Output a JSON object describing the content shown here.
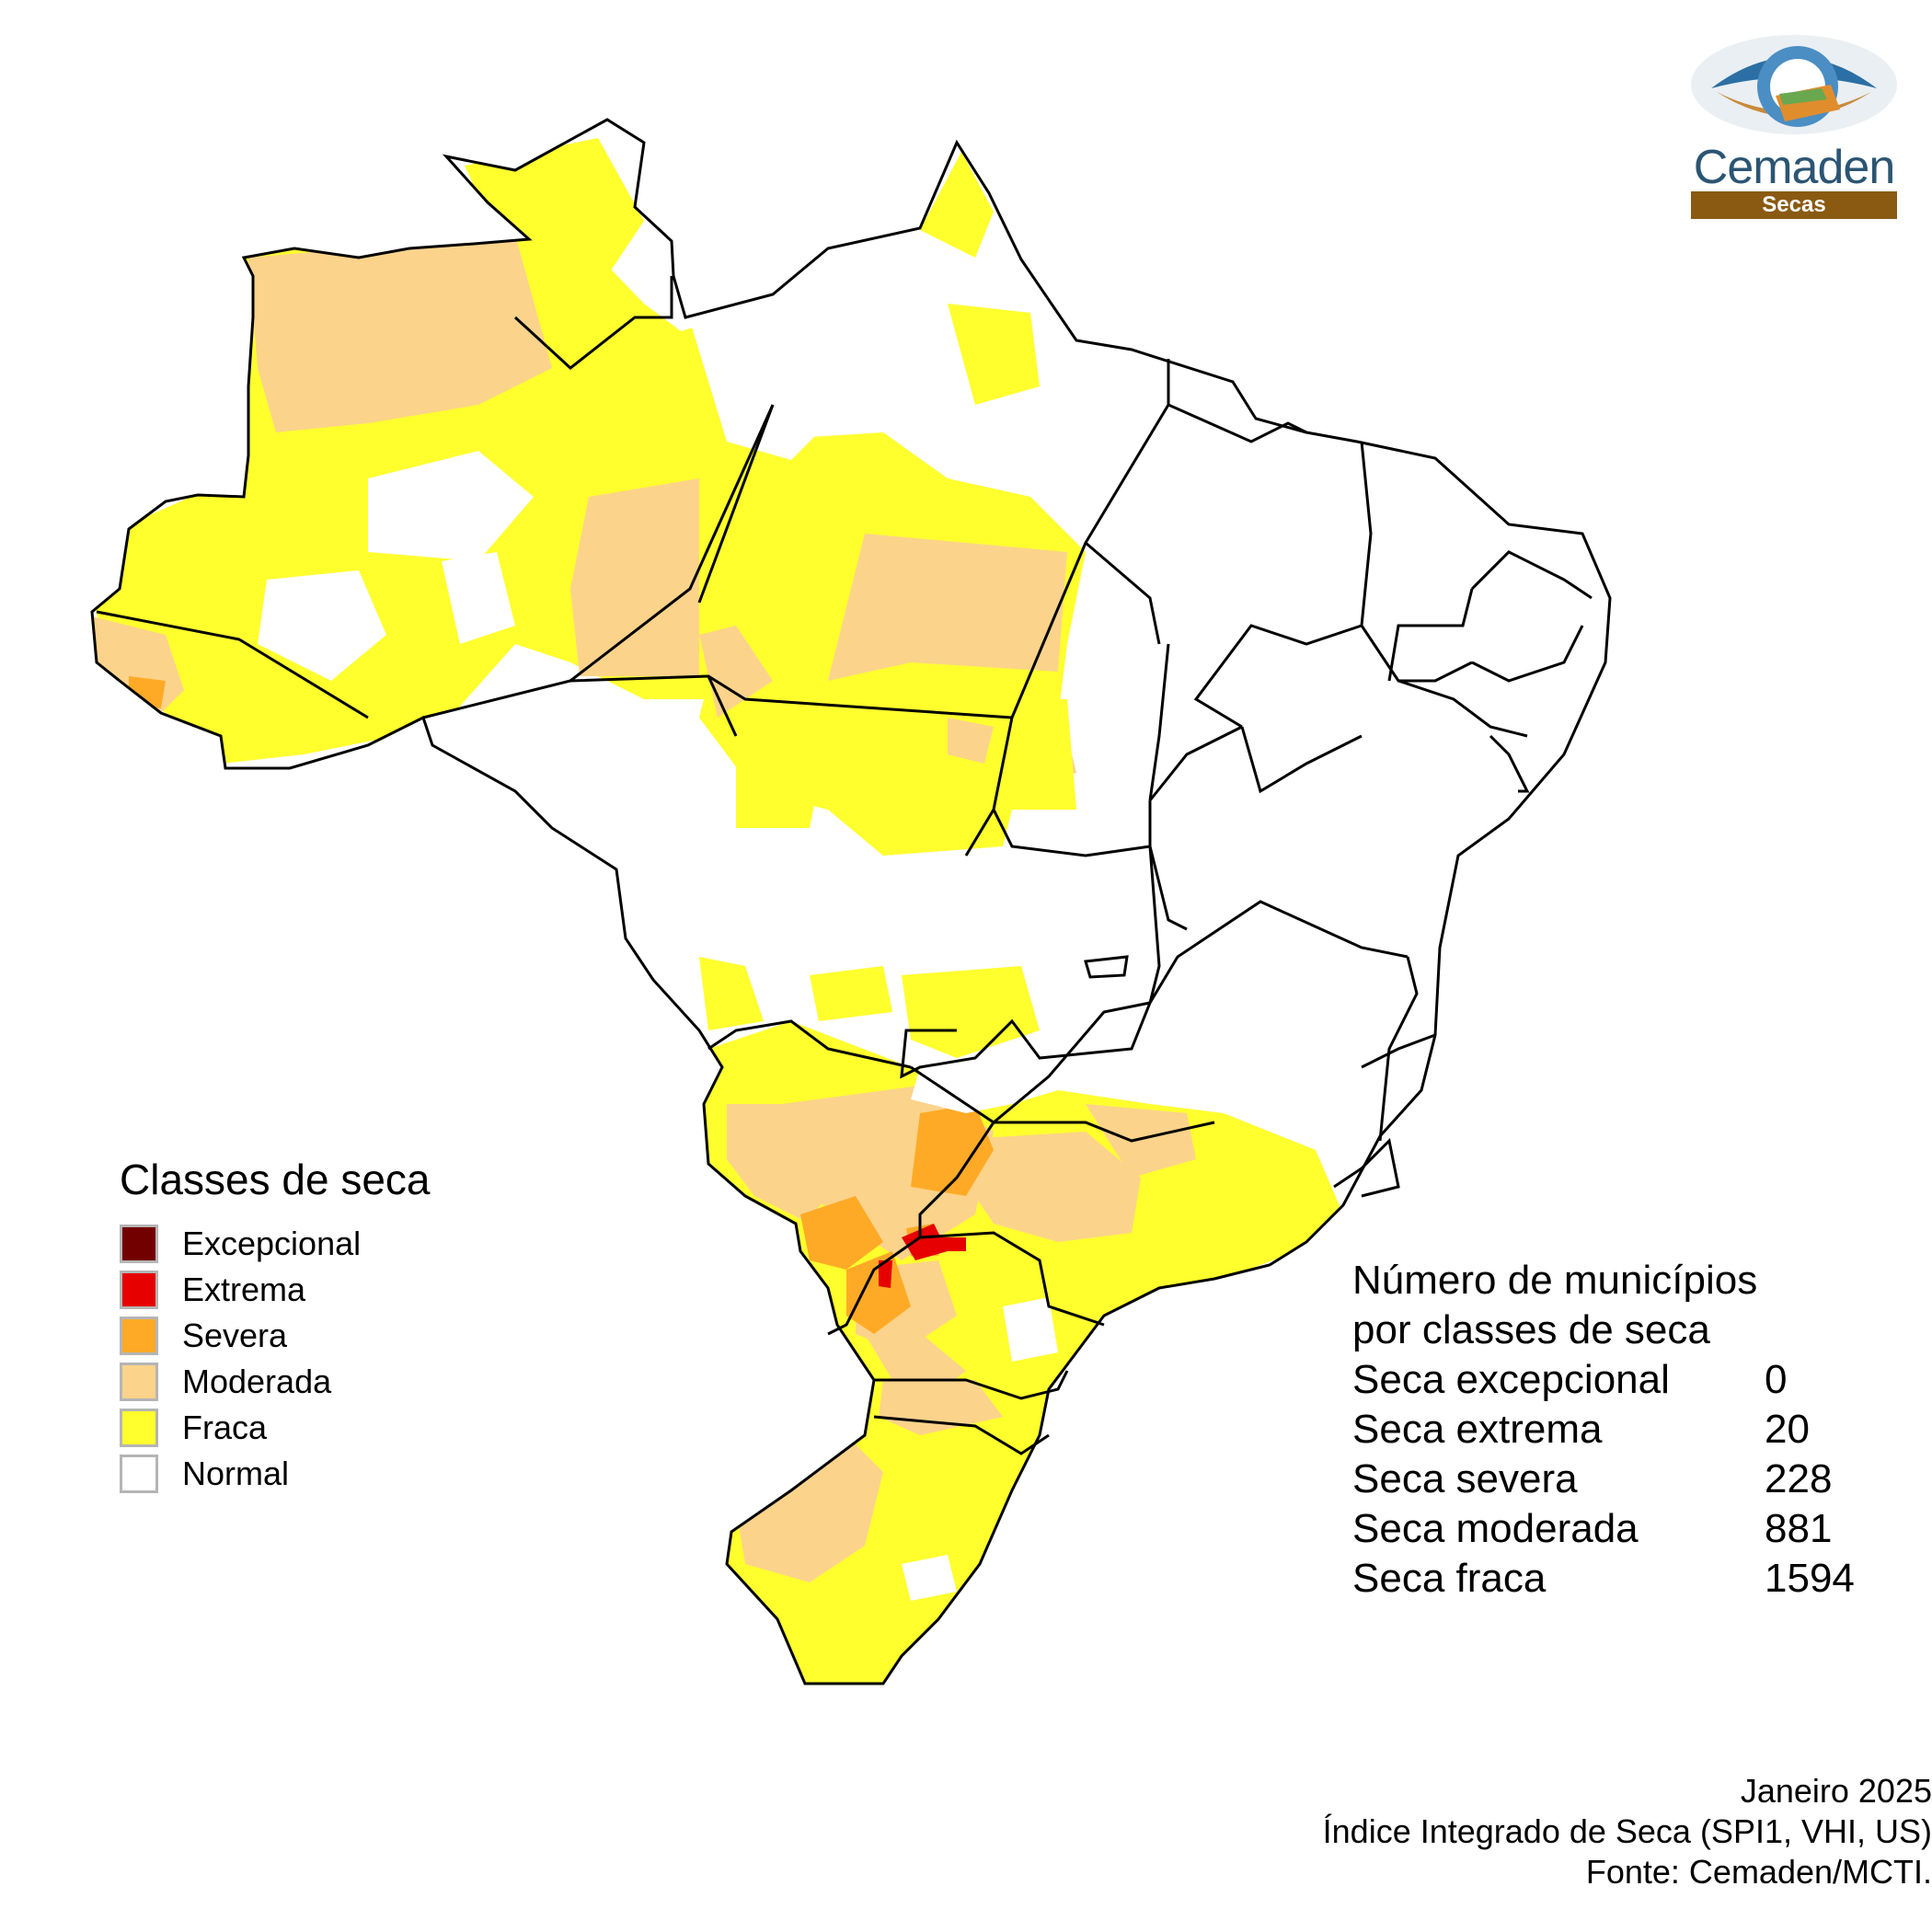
{
  "logo": {
    "name": "Cemaden",
    "subtitle": "Secas"
  },
  "legend": {
    "title": "Classes de seca",
    "items": [
      {
        "label": "Excepcional",
        "color": "#730000"
      },
      {
        "label": "Extrema",
        "color": "#e60000"
      },
      {
        "label": "Severa",
        "color": "#ffaa26"
      },
      {
        "label": "Moderada",
        "color": "#fcd38b"
      },
      {
        "label": "Fraca",
        "color": "#ffff2e"
      },
      {
        "label": "Normal",
        "color": "#ffffff"
      }
    ]
  },
  "counts": {
    "title_line1": "Número de municípios",
    "title_line2": "por classes de seca",
    "rows": [
      {
        "label": "Seca excepcional",
        "value": "0"
      },
      {
        "label": "Seca extrema",
        "value": "20"
      },
      {
        "label": "Seca severa",
        "value": "228"
      },
      {
        "label": "Seca moderada",
        "value": "881"
      },
      {
        "label": "Seca fraca",
        "value": "1594"
      }
    ]
  },
  "footer": {
    "date": "Janeiro 2025",
    "index": "Índice Integrado de Seca (SPI1, VHI, US)",
    "source": "Fonte: Cemaden/MCTI."
  },
  "colors": {
    "border": "#000000",
    "logo_blue": "#2b5573",
    "logo_brown": "#8a5a12"
  }
}
